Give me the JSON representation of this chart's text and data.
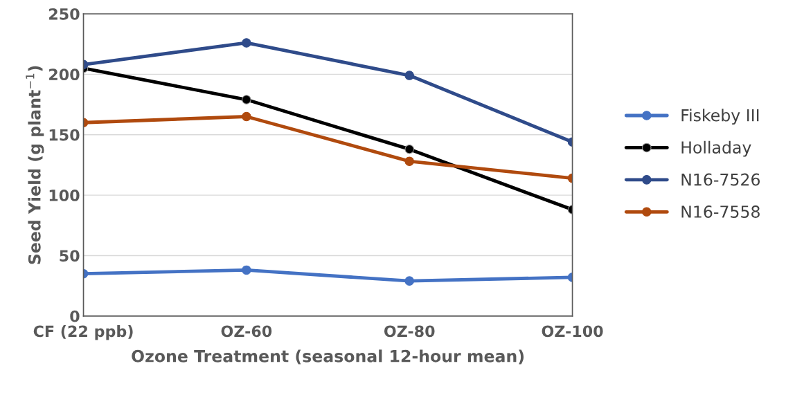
{
  "chart_data": {
    "type": "line",
    "xlabel": "Ozone Treatment (seasonal 12-hour mean)",
    "ylabel": "Seed Yield (g plant$^{−1}$)",
    "categories": [
      "CF (22 ppb)",
      "OZ-60",
      "OZ-80",
      "OZ-100"
    ],
    "series": [
      {
        "name": "Fiskeby III",
        "color": "#4472c4",
        "values": [
          35,
          38,
          29,
          32
        ]
      },
      {
        "name": "Holladay",
        "color": "#000000",
        "values": [
          205,
          179,
          138,
          88
        ]
      },
      {
        "name": "N16-7526",
        "color": "#2f4b8a",
        "values": [
          208,
          226,
          199,
          144
        ]
      },
      {
        "name": "N16-7558",
        "color": "#b04a0e",
        "values": [
          160,
          165,
          128,
          114
        ]
      }
    ],
    "ylim": [
      0,
      250
    ],
    "yticks": [
      0,
      50,
      100,
      150,
      200,
      250
    ],
    "grid": "y",
    "legend": "right",
    "marker": "circle",
    "line_style": "solid"
  }
}
